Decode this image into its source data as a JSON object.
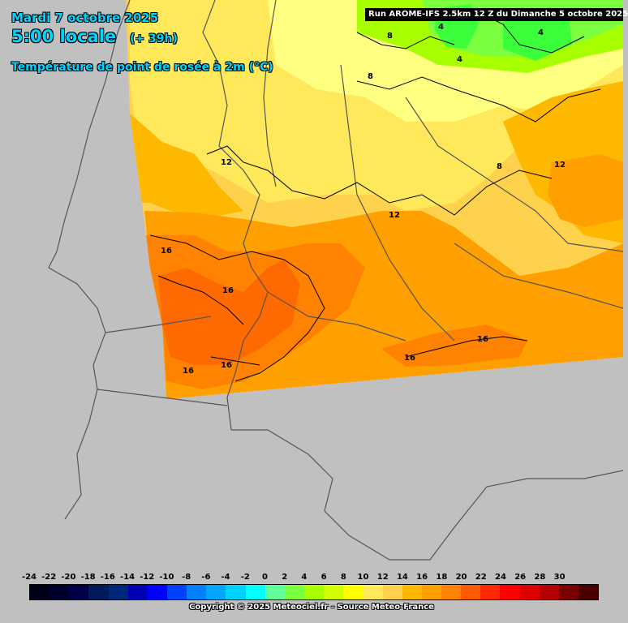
{
  "header": {
    "date": "Mardi 7 octobre 2025",
    "local_time": "5:00 locale",
    "lead": "(+ 39h)",
    "parameter": "Température de point de rosée à 2m (°C)"
  },
  "run_info": "Run AROME-IFS 2.5km 12 Z du Dimanche 5 octobre 2025",
  "legend": {
    "ticks": [
      "-24",
      "-22",
      "-20",
      "-18",
      "-16",
      "-14",
      "-12",
      "-10",
      "-8",
      "-6",
      "-4",
      "-2",
      "0",
      "2",
      "4",
      "6",
      "8",
      "10",
      "12",
      "14",
      "16",
      "18",
      "20",
      "22",
      "24",
      "26",
      "28",
      "30"
    ],
    "colors": [
      "#000019",
      "#00002e",
      "#000046",
      "#001a5c",
      "#002878",
      "#0000b4",
      "#0000ff",
      "#0040ff",
      "#0080ff",
      "#00a6ff",
      "#00d2ff",
      "#00ffff",
      "#60ff9a",
      "#7cff3e",
      "#a8ff00",
      "#d2ff00",
      "#ffff00",
      "#ffe85a",
      "#ffd24e",
      "#ffb800",
      "#ffa000",
      "#ff8200",
      "#ff5a00",
      "#ff2800",
      "#ff0000",
      "#dc0000",
      "#b40000",
      "#780000",
      "#4b0000"
    ]
  },
  "contour_labels": [
    {
      "label": "4",
      "value": 4
    },
    {
      "label": "4",
      "value": 4
    },
    {
      "label": "4",
      "value": 4
    },
    {
      "label": "8",
      "value": 8
    },
    {
      "label": "8",
      "value": 8
    },
    {
      "label": "8",
      "value": 8
    },
    {
      "label": "12",
      "value": 12
    },
    {
      "label": "12",
      "value": 12
    },
    {
      "label": "12",
      "value": 12
    },
    {
      "label": "16",
      "value": 16
    },
    {
      "label": "16",
      "value": 16
    },
    {
      "label": "16",
      "value": 16
    },
    {
      "label": "16",
      "value": 16
    },
    {
      "label": "16",
      "value": 16
    },
    {
      "label": "16",
      "value": 16
    }
  ],
  "copyright": "Copyright © 2025 Meteociel.fr - Source Meteo-France"
}
